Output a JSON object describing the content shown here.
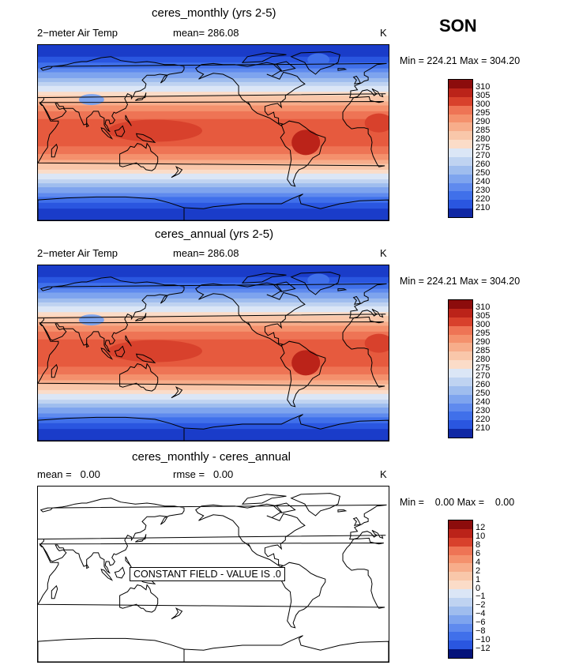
{
  "season": "SON",
  "colors": {
    "warm": [
      "#fbdcc8",
      "#f9c7aa",
      "#f7ad8b",
      "#f4916d",
      "#ee7455",
      "#e65a3e",
      "#d8412c",
      "#bb2319",
      "#8c0c0c"
    ],
    "cool": [
      "#dbe6f6",
      "#bfd3f1",
      "#9fbdee",
      "#7ea4ee",
      "#5f8aee",
      "#4070ea",
      "#2a56e0",
      "#1a3cc9",
      "#1028a4",
      "#04137a"
    ],
    "land_outline": "#000000"
  },
  "panels": [
    {
      "title": "ceres_monthly (yrs 2-5)",
      "left_label": "2−meter Air Temp",
      "center_label": "mean=",
      "center_value": "286.08",
      "units": "K",
      "min_label": "Min = 224.21 Max = 304.20",
      "constant": false
    },
    {
      "title": "ceres_annual (yrs 2-5)",
      "left_label": "2−meter Air Temp",
      "center_label": "mean=",
      "center_value": "286.08",
      "units": "K",
      "min_label": "Min = 224.21 Max = 304.20",
      "constant": false
    },
    {
      "title": "ceres_monthly - ceres_annual",
      "left_label": "mean =",
      "left_value": "0.00",
      "center_label": "rmse =",
      "center_value": "0.00",
      "units": "K",
      "min_label": "Min =    0.00 Max =    0.00",
      "constant": true,
      "constant_text": "CONSTANT FIELD - VALUE IS .0"
    }
  ],
  "colorbars": [
    {
      "levels": [
        "310",
        "305",
        "300",
        "295",
        "290",
        "285",
        "280",
        "275",
        "270",
        "260",
        "250",
        "240",
        "230",
        "220",
        "210"
      ],
      "colors": [
        "#8c0c0c",
        "#bb2319",
        "#d8412c",
        "#ee7455",
        "#f4916d",
        "#f7ad8b",
        "#f9c7aa",
        "#fbdcc8",
        "#dbe6f6",
        "#bfd3f1",
        "#9fbdee",
        "#7ea4ee",
        "#5f8aee",
        "#4070ea",
        "#2a56e0",
        "#1028a4"
      ]
    },
    {
      "levels": [
        "310",
        "305",
        "300",
        "295",
        "290",
        "285",
        "280",
        "275",
        "270",
        "260",
        "250",
        "240",
        "230",
        "220",
        "210"
      ],
      "colors": [
        "#8c0c0c",
        "#bb2319",
        "#d8412c",
        "#ee7455",
        "#f4916d",
        "#f7ad8b",
        "#f9c7aa",
        "#fbdcc8",
        "#dbe6f6",
        "#bfd3f1",
        "#9fbdee",
        "#7ea4ee",
        "#5f8aee",
        "#4070ea",
        "#2a56e0",
        "#1028a4"
      ]
    },
    {
      "levels": [
        "12",
        "10",
        "8",
        "6",
        "4",
        "2",
        "1",
        "0",
        "−1",
        "−2",
        "−4",
        "−6",
        "−8",
        "−10",
        "−12"
      ],
      "colors": [
        "#8c0c0c",
        "#bb2319",
        "#d8412c",
        "#ee7455",
        "#f4916d",
        "#f7ad8b",
        "#f9c7aa",
        "#fbdcc8",
        "#dbe6f6",
        "#bfd3f1",
        "#9fbdee",
        "#7ea4ee",
        "#5f8aee",
        "#4070ea",
        "#2a56e0",
        "#04137a"
      ]
    }
  ],
  "chart_data": [
    {
      "type": "heatmap",
      "title": "ceres_monthly (yrs 2-5)",
      "variable": "2−meter Air Temp",
      "units": "K",
      "mean": 286.08,
      "min": 224.21,
      "max": 304.2,
      "contour_levels": [
        210,
        220,
        230,
        240,
        250,
        260,
        270,
        275,
        280,
        285,
        290,
        295,
        300,
        305,
        310
      ]
    },
    {
      "type": "heatmap",
      "title": "ceres_annual (yrs 2-5)",
      "variable": "2−meter Air Temp",
      "units": "K",
      "mean": 286.08,
      "min": 224.21,
      "max": 304.2,
      "contour_levels": [
        210,
        220,
        230,
        240,
        250,
        260,
        270,
        275,
        280,
        285,
        290,
        295,
        300,
        305,
        310
      ]
    },
    {
      "type": "heatmap",
      "title": "ceres_monthly - ceres_annual",
      "units": "K",
      "mean": 0.0,
      "rmse": 0.0,
      "min": 0.0,
      "max": 0.0,
      "contour_levels": [
        -12,
        -10,
        -8,
        -6,
        -4,
        -2,
        -1,
        0,
        1,
        2,
        4,
        6,
        8,
        10,
        12
      ]
    }
  ]
}
